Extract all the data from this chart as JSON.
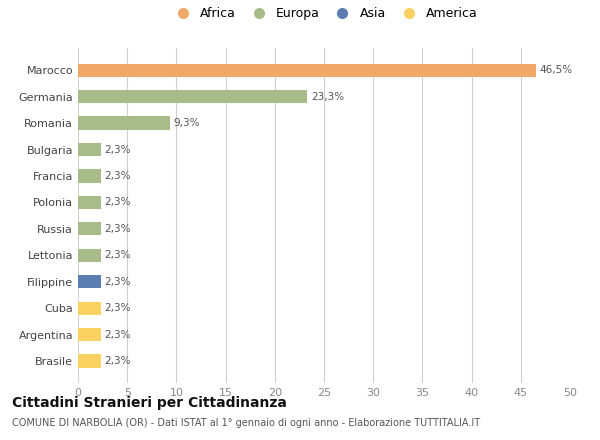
{
  "countries": [
    "Brasile",
    "Argentina",
    "Cuba",
    "Filippine",
    "Lettonia",
    "Russia",
    "Polonia",
    "Francia",
    "Bulgaria",
    "Romania",
    "Germania",
    "Marocco"
  ],
  "values": [
    2.3,
    2.3,
    2.3,
    2.3,
    2.3,
    2.3,
    2.3,
    2.3,
    2.3,
    9.3,
    23.3,
    46.5
  ],
  "labels": [
    "2,3%",
    "2,3%",
    "2,3%",
    "2,3%",
    "2,3%",
    "2,3%",
    "2,3%",
    "2,3%",
    "2,3%",
    "9,3%",
    "23,3%",
    "46,5%"
  ],
  "colors": [
    "#F9D262",
    "#F9D262",
    "#F9D262",
    "#5B7DB1",
    "#A8BC8A",
    "#A8BC8A",
    "#A8BC8A",
    "#A8BC8A",
    "#A8BC8A",
    "#A8BC8A",
    "#A8BC8A",
    "#F0A868"
  ],
  "legend": [
    {
      "label": "Africa",
      "color": "#F0A868"
    },
    {
      "label": "Europa",
      "color": "#A8BC8A"
    },
    {
      "label": "Asia",
      "color": "#5B7DB1"
    },
    {
      "label": "America",
      "color": "#F9D262"
    }
  ],
  "xlim": [
    0,
    50
  ],
  "xticks": [
    0,
    5,
    10,
    15,
    20,
    25,
    30,
    35,
    40,
    45,
    50
  ],
  "title": "Cittadini Stranieri per Cittadinanza",
  "subtitle": "COMUNE DI NARBOLIA (OR) - Dati ISTAT al 1° gennaio di ogni anno - Elaborazione TUTTITALIA.IT",
  "bg_color": "#FFFFFF",
  "grid_color": "#D0D0D0",
  "bar_height": 0.5
}
